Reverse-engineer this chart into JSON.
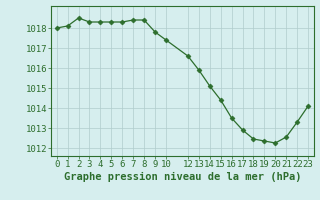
{
  "x": [
    0,
    1,
    2,
    3,
    4,
    5,
    6,
    7,
    8,
    9,
    10,
    12,
    13,
    14,
    15,
    16,
    17,
    18,
    19,
    20,
    21,
    22,
    23
  ],
  "y": [
    1018.0,
    1018.1,
    1018.5,
    1018.3,
    1018.3,
    1018.3,
    1018.3,
    1018.4,
    1018.4,
    1017.8,
    1017.4,
    1016.6,
    1015.9,
    1015.1,
    1014.4,
    1013.5,
    1012.9,
    1012.45,
    1012.35,
    1012.25,
    1012.55,
    1013.3,
    1014.1
  ],
  "line_color": "#2d6e2d",
  "marker": "D",
  "marker_size": 2.5,
  "bg_color": "#d6eeee",
  "grid_color": "#b0cccc",
  "xlabel": "Graphe pression niveau de la mer (hPa)",
  "xlabel_color": "#2d6e2d",
  "xlabel_fontsize": 7.5,
  "tick_color": "#2d6e2d",
  "tick_fontsize": 6.5,
  "ylim": [
    1011.6,
    1019.1
  ],
  "yticks": [
    1012,
    1013,
    1014,
    1015,
    1016,
    1017,
    1018
  ],
  "xtick_labels": [
    "0",
    "1",
    "2",
    "3",
    "4",
    "5",
    "6",
    "7",
    "8",
    "9",
    "10",
    "12",
    "13",
    "14",
    "15",
    "16",
    "17",
    "18",
    "19",
    "20",
    "21",
    "22",
    "23"
  ],
  "xlim": [
    -0.5,
    23.5
  ]
}
